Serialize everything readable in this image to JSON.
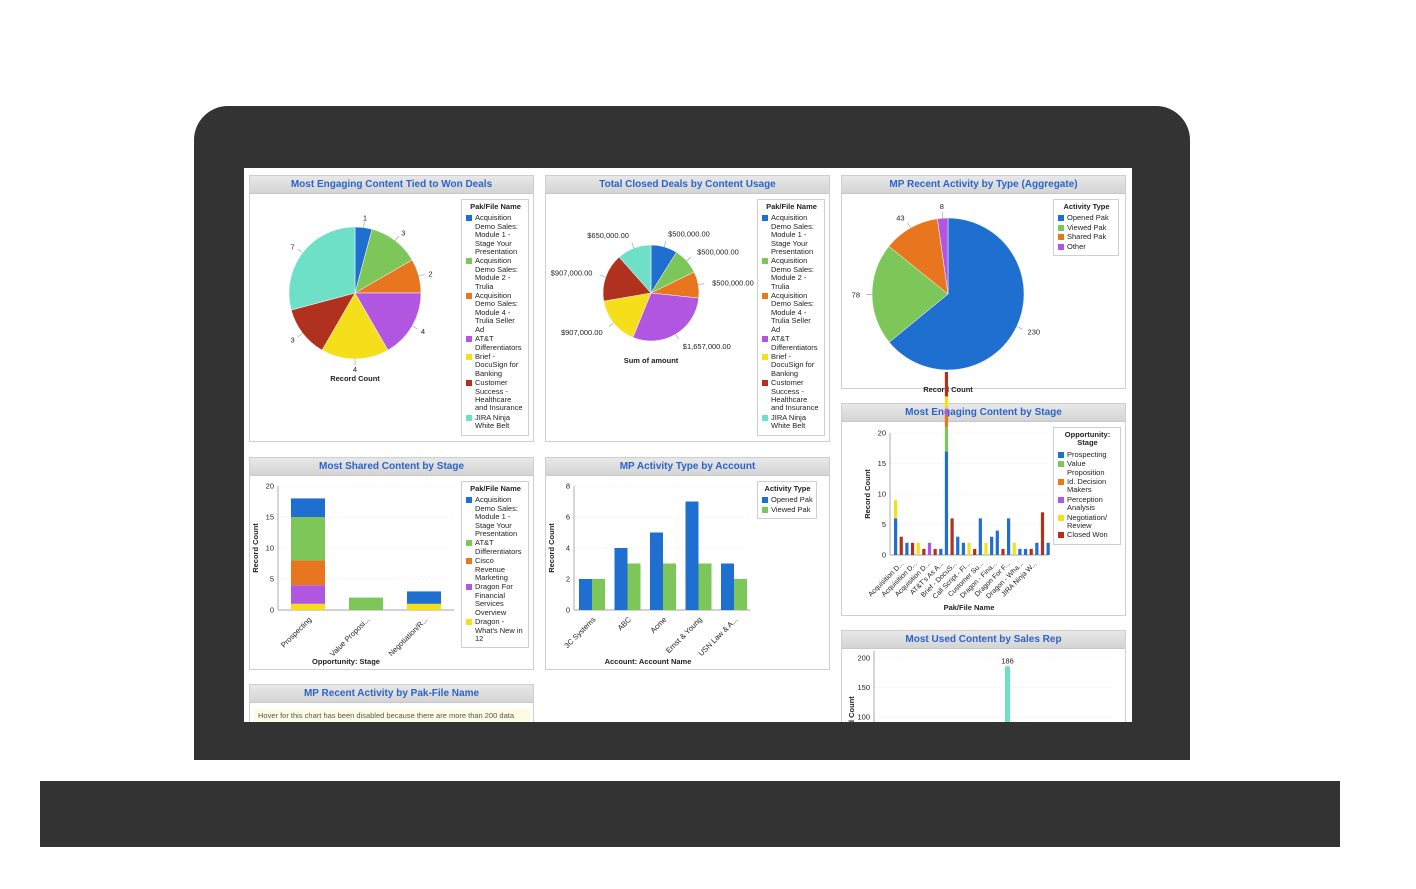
{
  "colors": {
    "blue": "#1f6fd1",
    "green": "#7cc65a",
    "orange": "#e8761e",
    "purple": "#b056e0",
    "yellow": "#f5de1a",
    "darkred": "#b0321e",
    "teal": "#6fe0c8",
    "title": "#2a63c9"
  },
  "panels": {
    "won_deals": {
      "title": "Most Engaging Content Tied to Won Deals"
    },
    "closed_deals": {
      "title": "Total Closed Deals by Content Usage"
    },
    "recent_activity_type": {
      "title": "MP Recent Activity by Type (Aggregate)"
    },
    "shared_stage": {
      "title": "Most Shared Content by Stage"
    },
    "activity_account": {
      "title": "MP Activity Type by Account"
    },
    "engaging_stage": {
      "title": "Most Engaging Content by Stage"
    },
    "recent_pak": {
      "title": "MP Recent Activity by Pak-File Name",
      "note": "Hover for this chart has been disabled because there are more than 200 data"
    },
    "used_sales_rep": {
      "title": "Most Used Content by Sales Rep"
    }
  },
  "chart_data": [
    {
      "id": "won_deals",
      "type": "pie",
      "title": "Most Engaging Content Tied to Won Deals",
      "xlabel": "Record Count",
      "legend_title": "Pak/File Name",
      "categories": [
        "Acquisition Demo Sales: Module 1 - Stage Your Presentation",
        "Acquisition Demo Sales: Module 2 - Trulia",
        "Acquisition Demo Sales: Module 4 - Trulia Seller Ad",
        "AT&T Differentiators",
        "Brief - DocuSign for Banking",
        "Customer Success - Healthcare and Insurance",
        "JIRA Ninja White Belt"
      ],
      "values": [
        1,
        3,
        2,
        4,
        4,
        3,
        7
      ],
      "labels": [
        "1",
        "3",
        "2",
        "4",
        "4",
        "3",
        "7"
      ]
    },
    {
      "id": "closed_deals",
      "type": "pie",
      "title": "Total Closed Deals by Content Usage",
      "xlabel": "Sum of amount",
      "legend_title": "Pak/File Name",
      "categories": [
        "Acquisition Demo Sales: Module 1 - Stage Your Presentation",
        "Acquisition Demo Sales: Module 2 - Trulia",
        "Acquisition Demo Sales: Module 4 - Trulia Seller Ad",
        "AT&T Differentiators",
        "Brief - DocuSign for Banking",
        "Customer Success - Healthcare and Insurance",
        "JIRA Ninja White Belt"
      ],
      "values": [
        500000,
        500000,
        500000,
        1657000,
        907000,
        907000,
        650000
      ],
      "labels": [
        "$500,000.00",
        "$500,000.00",
        "$500,000.00",
        "$1,657,000.00",
        "$907,000.00",
        "$907,000.00",
        "$650,000.00"
      ]
    },
    {
      "id": "recent_activity_type",
      "type": "pie",
      "title": "MP Recent Activity by Type (Aggregate)",
      "xlabel": "Record Count",
      "legend_title": "Activity Type",
      "categories": [
        "Opened Pak",
        "Viewed Pak",
        "Shared Pak",
        "Other"
      ],
      "values": [
        230,
        78,
        43,
        8
      ],
      "labels": [
        "230",
        "78",
        "43",
        "8"
      ]
    },
    {
      "id": "shared_stage",
      "type": "bar",
      "stacked": true,
      "title": "Most Shared Content by Stage",
      "xlabel": "Opportunity: Stage",
      "ylabel": "Record Count",
      "ylim": [
        0,
        20
      ],
      "yticks": [
        0,
        5,
        10,
        15,
        20
      ],
      "legend_title": "Pak/File Name",
      "categories": [
        "Prospecting",
        "Value Proposi...",
        "Negotiation/R..."
      ],
      "series": [
        {
          "name": "Dragon - What's New in 12",
          "values": [
            1,
            0,
            1
          ]
        },
        {
          "name": "Dragon For Financial Services Overview",
          "values": [
            3,
            0,
            0
          ]
        },
        {
          "name": "Cisco Revenue Marketing",
          "values": [
            4,
            0,
            0
          ]
        },
        {
          "name": "AT&T Differentiators",
          "values": [
            7,
            2,
            0
          ]
        },
        {
          "name": "Acquisition Demo Sales: Module 1 - Stage Your Presentation",
          "values": [
            3,
            0,
            2
          ]
        }
      ]
    },
    {
      "id": "activity_account",
      "type": "bar",
      "title": "MP Activity Type by Account",
      "xlabel": "Account: Account Name",
      "ylabel": "Record Count",
      "ylim": [
        0,
        8
      ],
      "yticks": [
        0,
        2,
        4,
        6,
        8
      ],
      "legend_title": "Activity Type",
      "categories": [
        "3C Systems",
        "ABC",
        "Acme",
        "Ernst & Young",
        "USN Law & A..."
      ],
      "series": [
        {
          "name": "Opened Pak",
          "values": [
            2,
            4,
            5,
            7,
            3
          ]
        },
        {
          "name": "Viewed Pak",
          "values": [
            2,
            3,
            3,
            3,
            2
          ]
        }
      ]
    },
    {
      "id": "engaging_stage",
      "type": "bar",
      "title": "Most Engaging Content by Stage",
      "xlabel": "Pak/File Name",
      "ylabel": "Record Count",
      "ylim": [
        0,
        20
      ],
      "yticks": [
        0,
        5,
        10,
        15,
        20
      ],
      "legend_title": "Opportunity: Stage",
      "categories": [
        "Acquisition D...",
        "Acquisition D...",
        "Acquisition D...",
        "AT&T's As A...",
        "Brief - DocuS...",
        "Call Script - Fi...",
        "Customer Su...",
        "Dragon - Fina...",
        "Dragon For F...",
        "Dragon - Wha...",
        "JIRA Ninja W..."
      ],
      "series": [
        {
          "name": "Prospecting",
          "values": [
            [
              6,
              3
            ],
            [
              2,
              0
            ],
            [
              1,
              0
            ],
            [
              0,
              1
            ],
            [
              17,
              3
            ],
            [
              3,
              0
            ],
            [
              6,
              2
            ],
            [
              4,
              2
            ],
            [
              6,
              1
            ],
            [
              1,
              1
            ],
            [
              2,
              0
            ]
          ]
        },
        {
          "name": "Value Proposition",
          "values": [
            0,
            0,
            0,
            0,
            0,
            0,
            0,
            0,
            0,
            0,
            0
          ]
        },
        {
          "name": "Id. Decision Makers",
          "values": [
            0,
            0,
            0,
            0,
            0,
            0,
            0,
            0,
            0,
            0,
            0
          ]
        },
        {
          "name": "Perception Analysis",
          "values": [
            0,
            0,
            0,
            0,
            0,
            0,
            0,
            0,
            0,
            0,
            0
          ]
        },
        {
          "name": "Negotiation/ Review",
          "values": [
            0,
            0,
            0,
            0,
            0,
            0,
            0,
            0,
            0,
            0,
            0
          ]
        },
        {
          "name": "Closed Won",
          "values": [
            3,
            2,
            0,
            2,
            0,
            2,
            0,
            0,
            0,
            0,
            7
          ]
        }
      ],
      "bars": [
        [
          [
            "blue",
            6
          ],
          [
            "yellow",
            3
          ]
        ],
        [
          [
            "darkred",
            3
          ]
        ],
        [
          [
            "blue",
            2
          ]
        ],
        [
          [
            "darkred",
            2
          ]
        ],
        [
          [
            "yellow",
            2
          ]
        ],
        [
          [
            "darkred",
            1
          ]
        ],
        [
          [
            "purple",
            2
          ]
        ],
        [
          [
            "darkred",
            1
          ]
        ],
        [
          [
            "blue",
            1
          ]
        ],
        [
          [
            "blue",
            17
          ],
          [
            "green",
            4
          ],
          [
            "orange",
            2
          ],
          [
            "purple",
            1
          ],
          [
            "yellow",
            2
          ],
          [
            "darkred",
            4
          ]
        ],
        [
          [
            "darkred",
            6
          ]
        ],
        [
          [
            "blue",
            3
          ]
        ],
        [
          [
            "blue",
            2
          ]
        ],
        [
          [
            "yellow",
            2
          ]
        ],
        [
          [
            "darkred",
            1
          ]
        ],
        [
          [
            "blue",
            6
          ]
        ],
        [
          [
            "yellow",
            2
          ]
        ],
        [
          [
            "blue",
            3
          ]
        ],
        [
          [
            "blue",
            4
          ]
        ],
        [
          [
            "darkred",
            1
          ]
        ],
        [
          [
            "blue",
            6
          ]
        ],
        [
          [
            "yellow",
            2
          ]
        ],
        [
          [
            "blue",
            1
          ]
        ],
        [
          [
            "blue",
            1
          ]
        ],
        [
          [
            "darkred",
            1
          ]
        ],
        [
          [
            "blue",
            2
          ]
        ],
        [
          [
            "darkred",
            7
          ]
        ],
        [
          [
            "blue",
            2
          ]
        ]
      ]
    },
    {
      "id": "used_sales_rep",
      "type": "bar",
      "title": "Most Used Content by Sales Rep",
      "ylabel": "Record Count",
      "ylim": [
        0,
        200
      ],
      "yticks": [
        100,
        150,
        200
      ],
      "series": [
        {
          "name": "",
          "values": [
            186
          ]
        }
      ],
      "labels": [
        "186"
      ]
    }
  ]
}
